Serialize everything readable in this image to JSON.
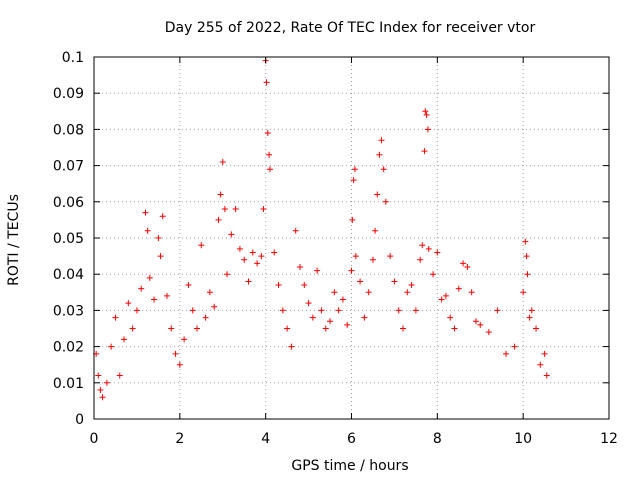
{
  "chart_data": {
    "type": "scatter",
    "title": "Day 255 of 2022, Rate Of TEC Index for receiver vtor",
    "xlabel": "GPS time / hours",
    "ylabel": "ROTI / TECUs",
    "xlim": [
      0,
      12
    ],
    "ylim": [
      0,
      0.1
    ],
    "x_ticks": [
      0,
      2,
      4,
      6,
      8,
      10,
      12
    ],
    "x_tick_labels": [
      "0",
      "2",
      "4",
      "6",
      "8",
      "10",
      "12"
    ],
    "y_ticks": [
      0,
      0.01,
      0.02,
      0.03,
      0.04,
      0.05,
      0.06,
      0.07,
      0.08,
      0.09,
      0.1
    ],
    "y_tick_labels": [
      "0",
      "0.01",
      "0.02",
      "0.03",
      "0.04",
      "0.05",
      "0.06",
      "0.07",
      "0.08",
      "0.09",
      "0.1"
    ],
    "grid": true,
    "marker": "+",
    "color": "#ff0000",
    "x_range_of_data": [
      0.0,
      10.6
    ],
    "series": [
      {
        "points": [
          [
            0.05,
            0.018
          ],
          [
            0.1,
            0.012
          ],
          [
            0.15,
            0.008
          ],
          [
            0.2,
            0.006
          ],
          [
            0.3,
            0.01
          ],
          [
            0.4,
            0.02
          ],
          [
            0.5,
            0.028
          ],
          [
            0.6,
            0.012
          ],
          [
            0.7,
            0.022
          ],
          [
            0.8,
            0.032
          ],
          [
            0.9,
            0.025
          ],
          [
            1.0,
            0.03
          ],
          [
            1.1,
            0.036
          ],
          [
            1.2,
            0.057
          ],
          [
            1.25,
            0.052
          ],
          [
            1.3,
            0.039
          ],
          [
            1.4,
            0.033
          ],
          [
            1.5,
            0.05
          ],
          [
            1.55,
            0.045
          ],
          [
            1.6,
            0.056
          ],
          [
            1.7,
            0.034
          ],
          [
            1.8,
            0.025
          ],
          [
            1.9,
            0.018
          ],
          [
            2.0,
            0.015
          ],
          [
            2.1,
            0.022
          ],
          [
            2.2,
            0.037
          ],
          [
            2.3,
            0.03
          ],
          [
            2.4,
            0.025
          ],
          [
            2.5,
            0.048
          ],
          [
            2.6,
            0.028
          ],
          [
            2.7,
            0.035
          ],
          [
            2.8,
            0.031
          ],
          [
            2.9,
            0.055
          ],
          [
            2.95,
            0.062
          ],
          [
            3.0,
            0.071
          ],
          [
            3.05,
            0.058
          ],
          [
            3.1,
            0.04
          ],
          [
            3.2,
            0.051
          ],
          [
            3.3,
            0.058
          ],
          [
            3.4,
            0.047
          ],
          [
            3.5,
            0.044
          ],
          [
            3.6,
            0.038
          ],
          [
            3.7,
            0.046
          ],
          [
            3.8,
            0.043
          ],
          [
            3.9,
            0.045
          ],
          [
            3.95,
            0.058
          ],
          [
            4.0,
            0.099
          ],
          [
            4.02,
            0.093
          ],
          [
            4.05,
            0.079
          ],
          [
            4.08,
            0.073
          ],
          [
            4.1,
            0.069
          ],
          [
            4.2,
            0.046
          ],
          [
            4.3,
            0.037
          ],
          [
            4.4,
            0.03
          ],
          [
            4.5,
            0.025
          ],
          [
            4.6,
            0.02
          ],
          [
            4.7,
            0.052
          ],
          [
            4.8,
            0.042
          ],
          [
            4.9,
            0.037
          ],
          [
            5.0,
            0.032
          ],
          [
            5.1,
            0.028
          ],
          [
            5.2,
            0.041
          ],
          [
            5.3,
            0.03
          ],
          [
            5.4,
            0.025
          ],
          [
            5.5,
            0.027
          ],
          [
            5.6,
            0.035
          ],
          [
            5.7,
            0.03
          ],
          [
            5.8,
            0.033
          ],
          [
            5.9,
            0.026
          ],
          [
            6.0,
            0.041
          ],
          [
            6.02,
            0.055
          ],
          [
            6.05,
            0.066
          ],
          [
            6.08,
            0.069
          ],
          [
            6.1,
            0.045
          ],
          [
            6.2,
            0.038
          ],
          [
            6.3,
            0.028
          ],
          [
            6.4,
            0.035
          ],
          [
            6.5,
            0.044
          ],
          [
            6.55,
            0.052
          ],
          [
            6.6,
            0.062
          ],
          [
            6.65,
            0.073
          ],
          [
            6.7,
            0.077
          ],
          [
            6.75,
            0.069
          ],
          [
            6.8,
            0.06
          ],
          [
            6.9,
            0.045
          ],
          [
            7.0,
            0.038
          ],
          [
            7.1,
            0.03
          ],
          [
            7.2,
            0.025
          ],
          [
            7.3,
            0.035
          ],
          [
            7.4,
            0.037
          ],
          [
            7.5,
            0.03
          ],
          [
            7.6,
            0.044
          ],
          [
            7.65,
            0.048
          ],
          [
            7.7,
            0.074
          ],
          [
            7.72,
            0.085
          ],
          [
            7.75,
            0.084
          ],
          [
            7.78,
            0.08
          ],
          [
            7.8,
            0.047
          ],
          [
            7.9,
            0.04
          ],
          [
            8.0,
            0.046
          ],
          [
            8.1,
            0.033
          ],
          [
            8.2,
            0.034
          ],
          [
            8.3,
            0.028
          ],
          [
            8.4,
            0.025
          ],
          [
            8.5,
            0.036
          ],
          [
            8.6,
            0.043
          ],
          [
            8.7,
            0.042
          ],
          [
            8.8,
            0.035
          ],
          [
            8.9,
            0.027
          ],
          [
            9.0,
            0.026
          ],
          [
            9.2,
            0.024
          ],
          [
            9.4,
            0.03
          ],
          [
            9.6,
            0.018
          ],
          [
            9.8,
            0.02
          ],
          [
            10.0,
            0.035
          ],
          [
            10.05,
            0.049
          ],
          [
            10.08,
            0.045
          ],
          [
            10.1,
            0.04
          ],
          [
            10.15,
            0.028
          ],
          [
            10.2,
            0.03
          ],
          [
            10.3,
            0.025
          ],
          [
            10.4,
            0.015
          ],
          [
            10.5,
            0.018
          ],
          [
            10.55,
            0.012
          ]
        ]
      }
    ]
  }
}
